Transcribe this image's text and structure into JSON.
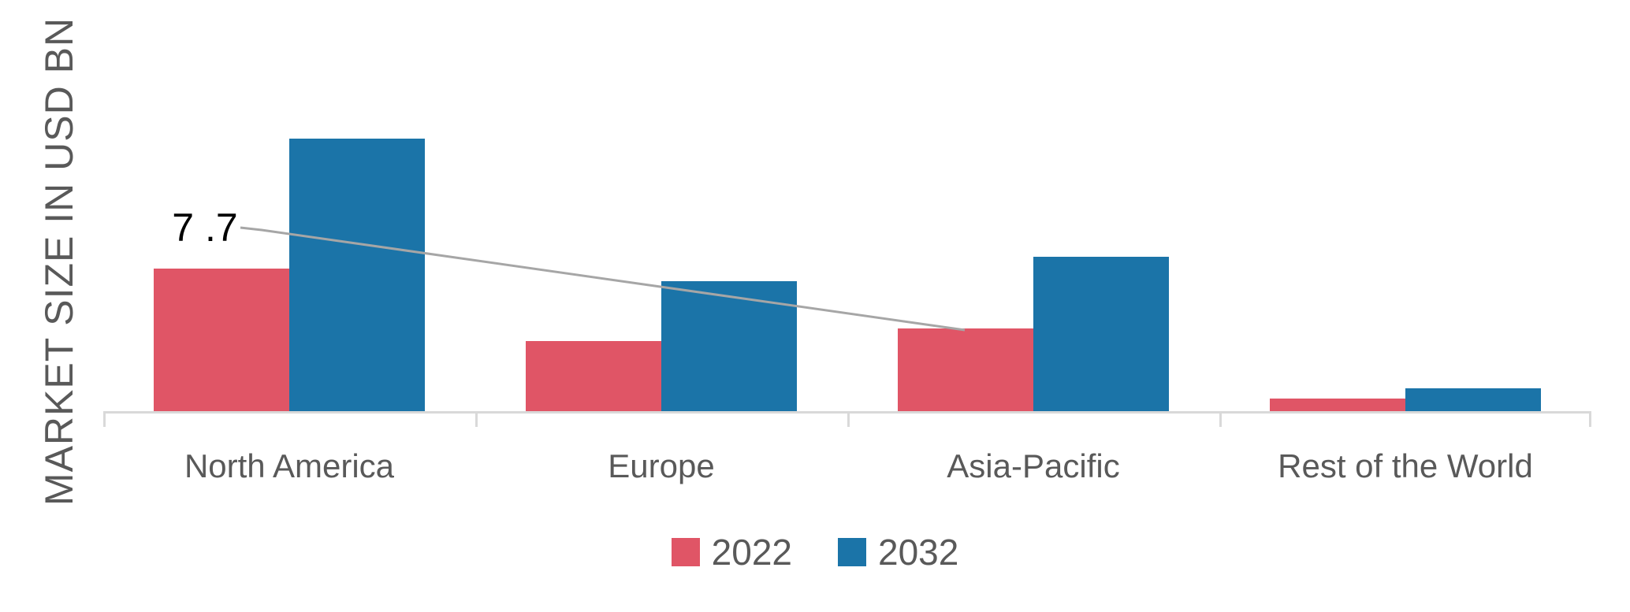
{
  "page": {
    "background": "#ffffff"
  },
  "chart_data": {
    "type": "bar",
    "title": "",
    "xlabel": "",
    "ylabel": "MARKET SIZE IN USD BN",
    "categories": [
      "North America",
      "Europe",
      "Asia-Pacific",
      "Rest of the World"
    ],
    "series": [
      {
        "name": "2022",
        "color": "#e05566",
        "values": [
          13.3,
          6.5,
          7.7,
          1.2
        ]
      },
      {
        "name": "2032",
        "color": "#1b74a8",
        "values": [
          25.4,
          12.1,
          14.4,
          2.1
        ]
      }
    ],
    "annotation": {
      "label": "7 .7",
      "value": 7.7,
      "category": "Asia-Pacific",
      "series": "2022",
      "text_color": "#000000",
      "line_color": "#a6a6a6"
    },
    "legend_position": "bottom-center",
    "grid": false,
    "axis_color": "#d9d9d9",
    "text_color": "#595959",
    "ylim": [
      0,
      27
    ]
  }
}
